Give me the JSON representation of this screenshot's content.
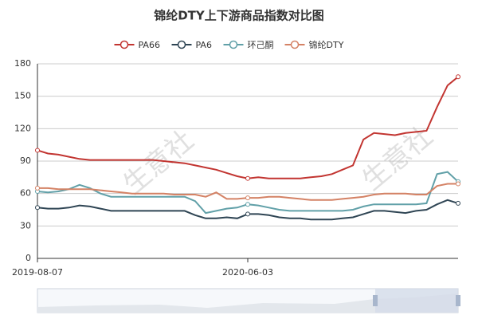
{
  "chart_data": {
    "type": "line",
    "title": "锦纶DTY上下游商品指数对比图",
    "watermark": "生意社",
    "categories": [
      "2019-08-07",
      null,
      null,
      null,
      null,
      null,
      null,
      null,
      null,
      null,
      null,
      null,
      null,
      null,
      null,
      null,
      null,
      null,
      null,
      null,
      "2020-06-03",
      null,
      null,
      null,
      null,
      null,
      null,
      null,
      null,
      null,
      null,
      null,
      null,
      null,
      null,
      null,
      null,
      null,
      null,
      null,
      null
    ],
    "ylim": [
      0,
      180
    ],
    "yticks": [
      0,
      30,
      60,
      90,
      120,
      150,
      180
    ],
    "grid": true,
    "legend": "top",
    "series": [
      {
        "name": "PA66",
        "color": "#c23531",
        "values": [
          100,
          97,
          96,
          94,
          92,
          91,
          91,
          91,
          91,
          91,
          91,
          91,
          90,
          89,
          88,
          86,
          84,
          82,
          79,
          76,
          74,
          75,
          74,
          74,
          74,
          74,
          75,
          76,
          78,
          82,
          86,
          110,
          116,
          115,
          114,
          116,
          117,
          118,
          140,
          160,
          168
        ]
      },
      {
        "name": "PA6",
        "color": "#2f4554",
        "values": [
          47,
          46,
          46,
          47,
          49,
          48,
          46,
          44,
          44,
          44,
          44,
          44,
          44,
          44,
          44,
          40,
          37,
          37,
          38,
          37,
          41,
          41,
          40,
          38,
          37,
          37,
          36,
          36,
          36,
          37,
          38,
          41,
          44,
          44,
          43,
          42,
          44,
          45,
          50,
          54,
          51
        ]
      },
      {
        "name": "环己酮",
        "color": "#61a0a8",
        "values": [
          62,
          61,
          62,
          64,
          68,
          65,
          60,
          57,
          57,
          57,
          57,
          57,
          57,
          57,
          57,
          53,
          42,
          44,
          46,
          47,
          50,
          49,
          47,
          45,
          44,
          44,
          44,
          44,
          44,
          44,
          45,
          48,
          50,
          50,
          50,
          50,
          50,
          51,
          78,
          80,
          71
        ]
      },
      {
        "name": "锦纶DTY",
        "color": "#d48265",
        "values": [
          65,
          65,
          64,
          64,
          64,
          64,
          63,
          62,
          61,
          60,
          60,
          60,
          60,
          59,
          59,
          59,
          57,
          61,
          55,
          55,
          56,
          56,
          57,
          57,
          56,
          55,
          54,
          54,
          54,
          55,
          56,
          57,
          59,
          60,
          60,
          60,
          59,
          59,
          67,
          69,
          69
        ]
      }
    ]
  }
}
